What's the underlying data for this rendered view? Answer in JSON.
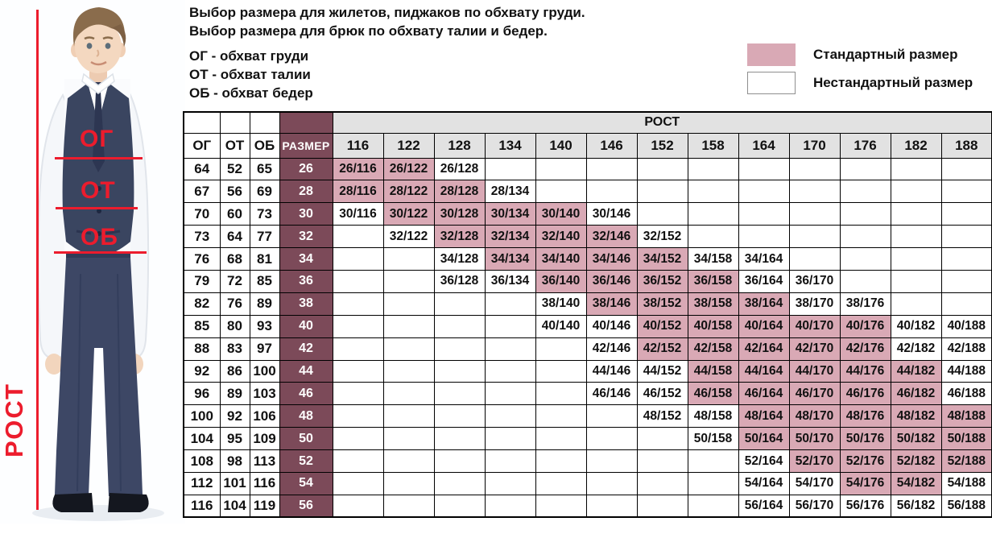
{
  "intro": {
    "line1": "Выбор размера для жилетов, пиджаков по обхвату груди.",
    "line2": "Выбор размера для брюк по обхвату талии и бедер.",
    "abbr1": "ОГ - обхват груди",
    "abbr2": "ОТ - обхват талии",
    "abbr3": "ОБ - обхват бедер"
  },
  "legend": {
    "standard_label": "Стандартный размер",
    "nonstandard_label": "Нестандартный размер",
    "standard_color": "#d9a9b5",
    "nonstandard_color": "#ffffff"
  },
  "figure": {
    "chest_label": "ОГ",
    "waist_label": "ОТ",
    "hips_label": "ОБ",
    "height_label": "РОСТ",
    "annotation_color": "#ec1c2d"
  },
  "table": {
    "corner_headers": [
      "ОГ",
      "ОТ",
      "ОБ",
      "РАЗМЕР"
    ],
    "rost_header": "РОСТ",
    "heights": [
      "116",
      "122",
      "128",
      "134",
      "140",
      "146",
      "152",
      "158",
      "164",
      "170",
      "176",
      "182",
      "188"
    ],
    "size_column_color": "#7c4a59",
    "standard_cell_color": "#d9a9b5",
    "header_gray_color": "#e2e2e2",
    "rows": [
      {
        "og": "64",
        "ot": "52",
        "ob": "65",
        "size": "26",
        "cells": [
          {
            "h": "116",
            "label": "26/116",
            "standard": true
          },
          {
            "h": "122",
            "label": "26/122",
            "standard": true
          },
          {
            "h": "128",
            "label": "26/128",
            "standard": false
          }
        ]
      },
      {
        "og": "67",
        "ot": "56",
        "ob": "69",
        "size": "28",
        "cells": [
          {
            "h": "116",
            "label": "28/116",
            "standard": true
          },
          {
            "h": "122",
            "label": "28/122",
            "standard": true
          },
          {
            "h": "128",
            "label": "28/128",
            "standard": true
          },
          {
            "h": "134",
            "label": "28/134",
            "standard": false
          }
        ]
      },
      {
        "og": "70",
        "ot": "60",
        "ob": "73",
        "size": "30",
        "cells": [
          {
            "h": "116",
            "label": "30/116",
            "standard": false
          },
          {
            "h": "122",
            "label": "30/122",
            "standard": true
          },
          {
            "h": "128",
            "label": "30/128",
            "standard": true
          },
          {
            "h": "134",
            "label": "30/134",
            "standard": true
          },
          {
            "h": "140",
            "label": "30/140",
            "standard": true
          },
          {
            "h": "146",
            "label": "30/146",
            "standard": false
          }
        ]
      },
      {
        "og": "73",
        "ot": "64",
        "ob": "77",
        "size": "32",
        "cells": [
          {
            "h": "122",
            "label": "32/122",
            "standard": false
          },
          {
            "h": "128",
            "label": "32/128",
            "standard": true
          },
          {
            "h": "134",
            "label": "32/134",
            "standard": true
          },
          {
            "h": "140",
            "label": "32/140",
            "standard": true
          },
          {
            "h": "146",
            "label": "32/146",
            "standard": true
          },
          {
            "h": "152",
            "label": "32/152",
            "standard": false
          }
        ]
      },
      {
        "og": "76",
        "ot": "68",
        "ob": "81",
        "size": "34",
        "cells": [
          {
            "h": "128",
            "label": "34/128",
            "standard": false
          },
          {
            "h": "134",
            "label": "34/134",
            "standard": true
          },
          {
            "h": "140",
            "label": "34/140",
            "standard": true
          },
          {
            "h": "146",
            "label": "34/146",
            "standard": true
          },
          {
            "h": "152",
            "label": "34/152",
            "standard": true
          },
          {
            "h": "158",
            "label": "34/158",
            "standard": false
          },
          {
            "h": "164",
            "label": "34/164",
            "standard": false
          }
        ]
      },
      {
        "og": "79",
        "ot": "72",
        "ob": "85",
        "size": "36",
        "cells": [
          {
            "h": "128",
            "label": "36/128",
            "standard": false
          },
          {
            "h": "134",
            "label": "36/134",
            "standard": false
          },
          {
            "h": "140",
            "label": "36/140",
            "standard": true
          },
          {
            "h": "146",
            "label": "36/146",
            "standard": true
          },
          {
            "h": "152",
            "label": "36/152",
            "standard": true
          },
          {
            "h": "158",
            "label": "36/158",
            "standard": true
          },
          {
            "h": "164",
            "label": "36/164",
            "standard": false
          },
          {
            "h": "170",
            "label": "36/170",
            "standard": false
          }
        ]
      },
      {
        "og": "82",
        "ot": "76",
        "ob": "89",
        "size": "38",
        "cells": [
          {
            "h": "140",
            "label": "38/140",
            "standard": false
          },
          {
            "h": "146",
            "label": "38/146",
            "standard": true
          },
          {
            "h": "152",
            "label": "38/152",
            "standard": true
          },
          {
            "h": "158",
            "label": "38/158",
            "standard": true
          },
          {
            "h": "164",
            "label": "38/164",
            "standard": true
          },
          {
            "h": "170",
            "label": "38/170",
            "standard": false
          },
          {
            "h": "176",
            "label": "38/176",
            "standard": false
          }
        ]
      },
      {
        "og": "85",
        "ot": "80",
        "ob": "93",
        "size": "40",
        "cells": [
          {
            "h": "140",
            "label": "40/140",
            "standard": false
          },
          {
            "h": "146",
            "label": "40/146",
            "standard": false
          },
          {
            "h": "152",
            "label": "40/152",
            "standard": true
          },
          {
            "h": "158",
            "label": "40/158",
            "standard": true
          },
          {
            "h": "164",
            "label": "40/164",
            "standard": true
          },
          {
            "h": "170",
            "label": "40/170",
            "standard": true
          },
          {
            "h": "176",
            "label": "40/176",
            "standard": true
          },
          {
            "h": "182",
            "label": "40/182",
            "standard": false
          },
          {
            "h": "188",
            "label": "40/188",
            "standard": false
          }
        ]
      },
      {
        "og": "88",
        "ot": "83",
        "ob": "97",
        "size": "42",
        "cells": [
          {
            "h": "146",
            "label": "42/146",
            "standard": false
          },
          {
            "h": "152",
            "label": "42/152",
            "standard": true
          },
          {
            "h": "158",
            "label": "42/158",
            "standard": true
          },
          {
            "h": "164",
            "label": "42/164",
            "standard": true
          },
          {
            "h": "170",
            "label": "42/170",
            "standard": true
          },
          {
            "h": "176",
            "label": "42/176",
            "standard": true
          },
          {
            "h": "182",
            "label": "42/182",
            "standard": false
          },
          {
            "h": "188",
            "label": "42/188",
            "standard": false
          }
        ]
      },
      {
        "og": "92",
        "ot": "86",
        "ob": "100",
        "size": "44",
        "cells": [
          {
            "h": "146",
            "label": "44/146",
            "standard": false
          },
          {
            "h": "152",
            "label": "44/152",
            "standard": false
          },
          {
            "h": "158",
            "label": "44/158",
            "standard": true
          },
          {
            "h": "164",
            "label": "44/164",
            "standard": true
          },
          {
            "h": "170",
            "label": "44/170",
            "standard": true
          },
          {
            "h": "176",
            "label": "44/176",
            "standard": true
          },
          {
            "h": "182",
            "label": "44/182",
            "standard": true
          },
          {
            "h": "188",
            "label": "44/188",
            "standard": false
          }
        ]
      },
      {
        "og": "96",
        "ot": "89",
        "ob": "103",
        "size": "46",
        "cells": [
          {
            "h": "146",
            "label": "46/146",
            "standard": false
          },
          {
            "h": "152",
            "label": "46/152",
            "standard": false
          },
          {
            "h": "158",
            "label": "46/158",
            "standard": true
          },
          {
            "h": "164",
            "label": "46/164",
            "standard": true
          },
          {
            "h": "170",
            "label": "46/170",
            "standard": true
          },
          {
            "h": "176",
            "label": "46/176",
            "standard": true
          },
          {
            "h": "182",
            "label": "46/182",
            "standard": true
          },
          {
            "h": "188",
            "label": "46/188",
            "standard": false
          }
        ]
      },
      {
        "og": "100",
        "ot": "92",
        "ob": "106",
        "size": "48",
        "cells": [
          {
            "h": "152",
            "label": "48/152",
            "standard": false
          },
          {
            "h": "158",
            "label": "48/158",
            "standard": false
          },
          {
            "h": "164",
            "label": "48/164",
            "standard": true
          },
          {
            "h": "170",
            "label": "48/170",
            "standard": true
          },
          {
            "h": "176",
            "label": "48/176",
            "standard": true
          },
          {
            "h": "182",
            "label": "48/182",
            "standard": true
          },
          {
            "h": "188",
            "label": "48/188",
            "standard": true
          }
        ]
      },
      {
        "og": "104",
        "ot": "95",
        "ob": "109",
        "size": "50",
        "cells": [
          {
            "h": "158",
            "label": "50/158",
            "standard": false
          },
          {
            "h": "164",
            "label": "50/164",
            "standard": true
          },
          {
            "h": "170",
            "label": "50/170",
            "standard": true
          },
          {
            "h": "176",
            "label": "50/176",
            "standard": true
          },
          {
            "h": "182",
            "label": "50/182",
            "standard": true
          },
          {
            "h": "188",
            "label": "50/188",
            "standard": true
          }
        ]
      },
      {
        "og": "108",
        "ot": "98",
        "ob": "113",
        "size": "52",
        "cells": [
          {
            "h": "164",
            "label": "52/164",
            "standard": false
          },
          {
            "h": "170",
            "label": "52/170",
            "standard": true
          },
          {
            "h": "176",
            "label": "52/176",
            "standard": true
          },
          {
            "h": "182",
            "label": "52/182",
            "standard": true
          },
          {
            "h": "188",
            "label": "52/188",
            "standard": true
          }
        ]
      },
      {
        "og": "112",
        "ot": "101",
        "ob": "116",
        "size": "54",
        "cells": [
          {
            "h": "164",
            "label": "54/164",
            "standard": false
          },
          {
            "h": "170",
            "label": "54/170",
            "standard": false
          },
          {
            "h": "176",
            "label": "54/176",
            "standard": true
          },
          {
            "h": "182",
            "label": "54/182",
            "standard": true
          },
          {
            "h": "188",
            "label": "54/188",
            "standard": false
          }
        ]
      },
      {
        "og": "116",
        "ot": "104",
        "ob": "119",
        "size": "56",
        "cells": [
          {
            "h": "164",
            "label": "56/164",
            "standard": false
          },
          {
            "h": "170",
            "label": "56/170",
            "standard": false
          },
          {
            "h": "176",
            "label": "56/176",
            "standard": false
          },
          {
            "h": "182",
            "label": "56/182",
            "standard": false
          },
          {
            "h": "188",
            "label": "56/188",
            "standard": false
          }
        ]
      }
    ]
  },
  "chart_data": {
    "type": "table",
    "title": "Выбор размера для жилетов, пиджаков по обхвату груди. Выбор размера для брюк по обхвату талии и бедер.",
    "legend": {
      "Стандартный размер": "#d9a9b5",
      "Нестандартный размер": "#ffffff"
    },
    "columns": [
      "ОГ",
      "ОТ",
      "ОБ",
      "РАЗМЕР",
      "116",
      "122",
      "128",
      "134",
      "140",
      "146",
      "152",
      "158",
      "164",
      "170",
      "176",
      "182",
      "188"
    ],
    "rows": [
      {
        "size": 26,
        "og": 64,
        "ot": 52,
        "ob": 65,
        "standard": [
          "26/116",
          "26/122"
        ],
        "nonstandard": [
          "26/128"
        ]
      },
      {
        "size": 28,
        "og": 67,
        "ot": 56,
        "ob": 69,
        "standard": [
          "28/116",
          "28/122",
          "28/128"
        ],
        "nonstandard": [
          "28/134"
        ]
      },
      {
        "size": 30,
        "og": 70,
        "ot": 60,
        "ob": 73,
        "standard": [
          "30/122",
          "30/128",
          "30/134",
          "30/140"
        ],
        "nonstandard": [
          "30/116",
          "30/146"
        ]
      },
      {
        "size": 32,
        "og": 73,
        "ot": 64,
        "ob": 77,
        "standard": [
          "32/128",
          "32/134",
          "32/140",
          "32/146"
        ],
        "nonstandard": [
          "32/122",
          "32/152"
        ]
      },
      {
        "size": 34,
        "og": 76,
        "ot": 68,
        "ob": 81,
        "standard": [
          "34/134",
          "34/140",
          "34/146",
          "34/152"
        ],
        "nonstandard": [
          "34/128",
          "34/158",
          "34/164"
        ]
      },
      {
        "size": 36,
        "og": 79,
        "ot": 72,
        "ob": 85,
        "standard": [
          "36/140",
          "36/146",
          "36/152",
          "36/158"
        ],
        "nonstandard": [
          "36/128",
          "36/134",
          "36/164",
          "36/170"
        ]
      },
      {
        "size": 38,
        "og": 82,
        "ot": 76,
        "ob": 89,
        "standard": [
          "38/146",
          "38/152",
          "38/158",
          "38/164"
        ],
        "nonstandard": [
          "38/140",
          "38/170",
          "38/176"
        ]
      },
      {
        "size": 40,
        "og": 85,
        "ot": 80,
        "ob": 93,
        "standard": [
          "40/152",
          "40/158",
          "40/164",
          "40/170",
          "40/176"
        ],
        "nonstandard": [
          "40/140",
          "40/146",
          "40/182",
          "40/188"
        ]
      },
      {
        "size": 42,
        "og": 88,
        "ot": 83,
        "ob": 97,
        "standard": [
          "42/152",
          "42/158",
          "42/164",
          "42/170",
          "42/176"
        ],
        "nonstandard": [
          "42/146",
          "42/182",
          "42/188"
        ]
      },
      {
        "size": 44,
        "og": 92,
        "ot": 86,
        "ob": 100,
        "standard": [
          "44/158",
          "44/164",
          "44/170",
          "44/176",
          "44/182"
        ],
        "nonstandard": [
          "44/146",
          "44/152",
          "44/188"
        ]
      },
      {
        "size": 46,
        "og": 96,
        "ot": 89,
        "ob": 103,
        "standard": [
          "46/158",
          "46/164",
          "46/170",
          "46/176",
          "46/182"
        ],
        "nonstandard": [
          "46/146",
          "46/152",
          "46/188"
        ]
      },
      {
        "size": 48,
        "og": 100,
        "ot": 92,
        "ob": 106,
        "standard": [
          "48/164",
          "48/170",
          "48/176",
          "48/182",
          "48/188"
        ],
        "nonstandard": [
          "48/152",
          "48/158"
        ]
      },
      {
        "size": 50,
        "og": 104,
        "ot": 95,
        "ob": 109,
        "standard": [
          "50/164",
          "50/170",
          "50/176",
          "50/182",
          "50/188"
        ],
        "nonstandard": [
          "50/158"
        ]
      },
      {
        "size": 52,
        "og": 108,
        "ot": 98,
        "ob": 113,
        "standard": [
          "52/170",
          "52/176",
          "52/182",
          "52/188"
        ],
        "nonstandard": [
          "52/164"
        ]
      },
      {
        "size": 54,
        "og": 112,
        "ot": 101,
        "ob": 116,
        "standard": [
          "54/176",
          "54/182"
        ],
        "nonstandard": [
          "54/164",
          "54/170",
          "54/188"
        ]
      },
      {
        "size": 56,
        "og": 116,
        "ot": 104,
        "ob": 119,
        "standard": [],
        "nonstandard": [
          "56/164",
          "56/170",
          "56/176",
          "56/182",
          "56/188"
        ]
      }
    ]
  }
}
